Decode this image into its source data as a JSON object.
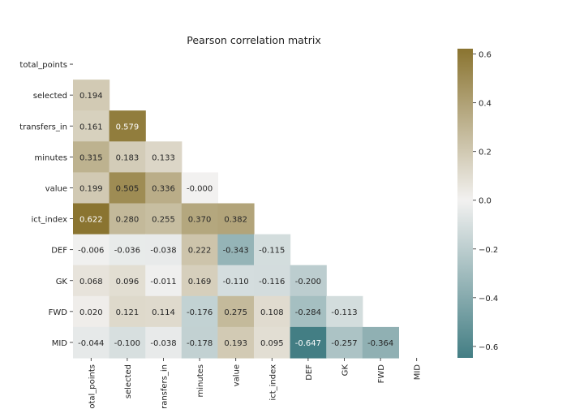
{
  "chart_data": {
    "type": "heatmap",
    "title": "Pearson correlation matrix",
    "labels": [
      "total_points",
      "selected",
      "transfers_in",
      "minutes",
      "value",
      "ict_index",
      "DEF",
      "GK",
      "FWD",
      "MID"
    ],
    "mask": "upper triangle (including diagonal) hidden",
    "matrix": [
      [
        null,
        null,
        null,
        null,
        null,
        null,
        null,
        null,
        null,
        null
      ],
      [
        0.194,
        null,
        null,
        null,
        null,
        null,
        null,
        null,
        null,
        null
      ],
      [
        0.161,
        0.579,
        null,
        null,
        null,
        null,
        null,
        null,
        null,
        null
      ],
      [
        0.315,
        0.183,
        0.133,
        null,
        null,
        null,
        null,
        null,
        null,
        null
      ],
      [
        0.199,
        0.505,
        0.336,
        -0.0,
        null,
        null,
        null,
        null,
        null,
        null
      ],
      [
        0.622,
        0.28,
        0.255,
        0.37,
        0.382,
        null,
        null,
        null,
        null,
        null
      ],
      [
        -0.006,
        -0.036,
        -0.038,
        0.222,
        -0.343,
        -0.115,
        null,
        null,
        null,
        null
      ],
      [
        0.068,
        0.096,
        -0.011,
        0.169,
        -0.11,
        -0.116,
        -0.2,
        null,
        null,
        null
      ],
      [
        0.02,
        0.121,
        0.114,
        -0.176,
        0.275,
        0.108,
        -0.284,
        -0.113,
        null,
        null
      ],
      [
        -0.044,
        -0.1,
        -0.038,
        -0.178,
        0.193,
        0.095,
        -0.647,
        -0.257,
        -0.364,
        null
      ]
    ],
    "cell_text": [
      [
        null,
        null,
        null,
        null,
        null,
        null,
        null,
        null,
        null,
        null
      ],
      [
        "0.194",
        null,
        null,
        null,
        null,
        null,
        null,
        null,
        null,
        null
      ],
      [
        "0.161",
        "0.579",
        null,
        null,
        null,
        null,
        null,
        null,
        null,
        null
      ],
      [
        "0.315",
        "0.183",
        "0.133",
        null,
        null,
        null,
        null,
        null,
        null,
        null
      ],
      [
        "0.199",
        "0.505",
        "0.336",
        "-0.000",
        null,
        null,
        null,
        null,
        null,
        null
      ],
      [
        "0.622",
        "0.280",
        "0.255",
        "0.370",
        "0.382",
        null,
        null,
        null,
        null,
        null
      ],
      [
        "-0.006",
        "-0.036",
        "-0.038",
        "0.222",
        "-0.343",
        "-0.115",
        null,
        null,
        null,
        null
      ],
      [
        "0.068",
        "0.096",
        "-0.011",
        "0.169",
        "-0.110",
        "-0.116",
        "-0.200",
        null,
        null,
        null
      ],
      [
        "0.020",
        "0.121",
        "0.114",
        "-0.176",
        "0.275",
        "0.108",
        "-0.284",
        "-0.113",
        null,
        null
      ],
      [
        "-0.044",
        "-0.100",
        "-0.038",
        "-0.178",
        "0.193",
        "0.095",
        "-0.647",
        "-0.257",
        "-0.364",
        null
      ]
    ],
    "colorbar": {
      "vmin": -0.647,
      "vmax": 0.622,
      "ticks": [
        0.6,
        0.4,
        0.2,
        0.0,
        -0.2,
        -0.4,
        -0.6
      ],
      "tick_labels": [
        "0.6",
        "0.4",
        "0.2",
        "0.0",
        "−0.2",
        "−0.4",
        "−0.6"
      ]
    },
    "colors": {
      "negative": "#437e84",
      "center": "#f2f1f0",
      "positive": "#8a7430"
    },
    "xlabel": "",
    "ylabel": ""
  }
}
